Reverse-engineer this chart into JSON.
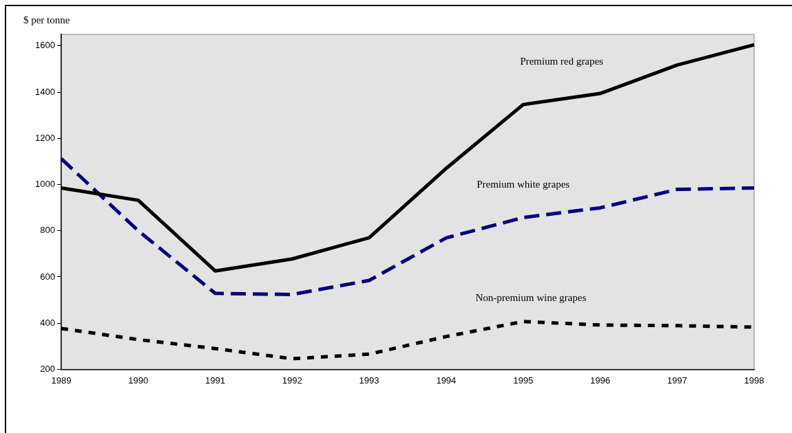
{
  "chart_data": {
    "type": "line",
    "ylabel": "$ per tonne",
    "categories": [
      "1989",
      "1990",
      "1991",
      "1992",
      "1993",
      "1994",
      "1995",
      "1996",
      "1997",
      "1998"
    ],
    "series": [
      {
        "name": "Premium red grapes",
        "color": "#000000",
        "line_style": "solid",
        "values": [
          985,
          932,
          626,
          678,
          770,
          1070,
          1346,
          1394,
          1517,
          1605
        ]
      },
      {
        "name": "Premium white grapes",
        "color": "#000080",
        "line_style": "dashed",
        "values": [
          1112,
          800,
          529,
          524,
          585,
          769,
          857,
          899,
          979,
          985
        ]
      },
      {
        "name": "Non-premium wine grapes",
        "color": "#000000",
        "line_style": "dotted",
        "values": [
          377,
          329,
          290,
          246,
          266,
          342,
          407,
          392,
          389,
          383
        ]
      }
    ],
    "ylim": [
      200,
      1650
    ],
    "yticks": [
      200,
      400,
      600,
      800,
      1000,
      1200,
      1400,
      1600
    ],
    "grid": false,
    "legend": false,
    "marker": "none"
  }
}
